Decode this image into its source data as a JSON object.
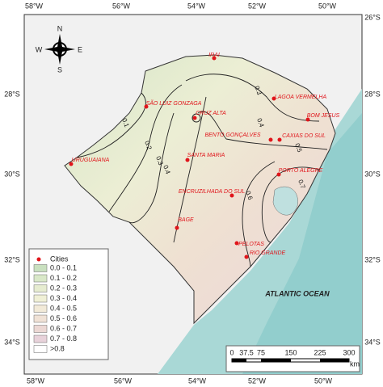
{
  "axes": {
    "top": [
      "58°W",
      "56°W",
      "54°W",
      "52°W",
      "50°W"
    ],
    "bottom": [
      "58°W",
      "56°W",
      "54°W",
      "52°W",
      "50°W"
    ],
    "left": [
      "28°S",
      "30°S",
      "32°S",
      "34°S"
    ],
    "right": [
      "26°S",
      "28°S",
      "30°S",
      "32°S",
      "34°S"
    ]
  },
  "compass": {
    "n": "N",
    "s": "S",
    "e": "E",
    "w": "W"
  },
  "cities": [
    "IRAI",
    "LAGOA VERMELHA",
    "SÃO LUIZ GONZAGA",
    "CRUZ ALTA",
    "BOM JESUS",
    "BENTO GONÇALVES",
    "CAXIAS DO SUL",
    "URUGUAIANA",
    "SANTA MARIA",
    "PORTO ALEGRE",
    "ENCRUZILHADA DO SUL",
    "BAGE",
    "PELOTAS",
    "RIO GRANDE"
  ],
  "contour_labels": [
    "0.1",
    "0.2",
    "0.3",
    "0.4",
    "0.3",
    "0.4",
    "0.5",
    "0.6",
    "0.7"
  ],
  "ocean_label": "ATLANTIC OCEAN",
  "legend": {
    "title": "Cities",
    "classes": [
      "0.0 - 0.1",
      "0.1 - 0.2",
      "0.2 - 0.3",
      "0.3 - 0.4",
      "0.4 - 0.5",
      "0.5 - 0.6",
      "0.6 - 0.7",
      "0.7 - 0.8",
      ">0.8"
    ]
  },
  "scale_bar": {
    "ticks": [
      0,
      37.5,
      75,
      150,
      225,
      300
    ],
    "unit": "km"
  }
}
